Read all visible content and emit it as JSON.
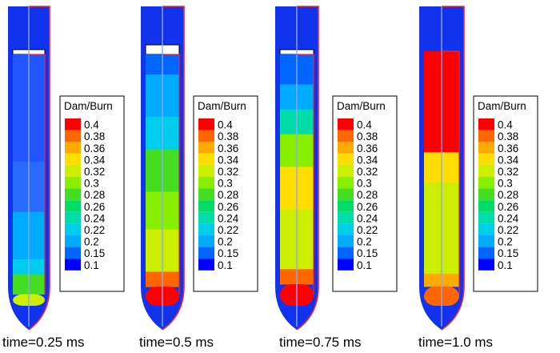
{
  "colorbar": {
    "title": "Dam/Burn",
    "levels": [
      "0.4",
      "0.38",
      "0.36",
      "0.34",
      "0.32",
      "0.3",
      "0.28",
      "0.26",
      "0.24",
      "0.22",
      "0.2",
      "0.15",
      "0.1"
    ],
    "colors": [
      "#ff0000",
      "#ff6600",
      "#ffaa00",
      "#ffdd00",
      "#ccee00",
      "#88ee00",
      "#44dd22",
      "#00dd66",
      "#00ddaa",
      "#00ccee",
      "#00aaff",
      "#0066ff",
      "#0000ff"
    ]
  },
  "panels": [
    {
      "time_label": "time=0.25 ms",
      "bands": [
        {
          "color": "#2255ff",
          "from": 0.0,
          "to": 0.43
        },
        {
          "color": "#2a6bff",
          "from": 0.43,
          "to": 0.63
        },
        {
          "color": "#00aaff",
          "from": 0.63,
          "to": 0.82
        },
        {
          "color": "#00ccee",
          "from": 0.82,
          "to": 0.88
        },
        {
          "color": "#44dd22",
          "from": 0.88,
          "to": 0.96
        },
        {
          "color": "#ccee00",
          "from": 0.96,
          "to": 1.0
        }
      ],
      "white_gap": 0.02
    },
    {
      "time_label": "time=0.5 ms",
      "bands": [
        {
          "color": "#0066ff",
          "from": 0.0,
          "to": 0.08
        },
        {
          "color": "#00aaff",
          "from": 0.08,
          "to": 0.25
        },
        {
          "color": "#00ccee",
          "from": 0.25,
          "to": 0.38
        },
        {
          "color": "#44dd22",
          "from": 0.38,
          "to": 0.55
        },
        {
          "color": "#88ee00",
          "from": 0.55,
          "to": 0.7
        },
        {
          "color": "#ccee00",
          "from": 0.7,
          "to": 0.87
        },
        {
          "color": "#ff6600",
          "from": 0.87,
          "to": 0.93
        },
        {
          "color": "#ff0000",
          "from": 0.93,
          "to": 1.0
        }
      ],
      "white_gap": 0.04
    },
    {
      "time_label": "time=0.75 ms",
      "bands": [
        {
          "color": "#0066ff",
          "from": 0.0,
          "to": 0.12
        },
        {
          "color": "#00aaff",
          "from": 0.12,
          "to": 0.22
        },
        {
          "color": "#00ddaa",
          "from": 0.22,
          "to": 0.32
        },
        {
          "color": "#88ee00",
          "from": 0.32,
          "to": 0.45
        },
        {
          "color": "#ffdd00",
          "from": 0.45,
          "to": 0.62
        },
        {
          "color": "#ccee00",
          "from": 0.62,
          "to": 0.86
        },
        {
          "color": "#ff6600",
          "from": 0.86,
          "to": 0.92
        },
        {
          "color": "#ff0000",
          "from": 0.92,
          "to": 1.0
        }
      ],
      "white_gap": 0.02
    },
    {
      "time_label": "time=1.0 ms",
      "bands": [
        {
          "color": "#ff0000",
          "from": 0.0,
          "to": 0.4
        },
        {
          "color": "#ffdd00",
          "from": 0.4,
          "to": 0.52
        },
        {
          "color": "#ccee00",
          "from": 0.52,
          "to": 0.88
        },
        {
          "color": "#ffaa00",
          "from": 0.88,
          "to": 0.93
        },
        {
          "color": "#ff6600",
          "from": 0.93,
          "to": 1.0
        }
      ],
      "white_gap": 0.0
    }
  ]
}
